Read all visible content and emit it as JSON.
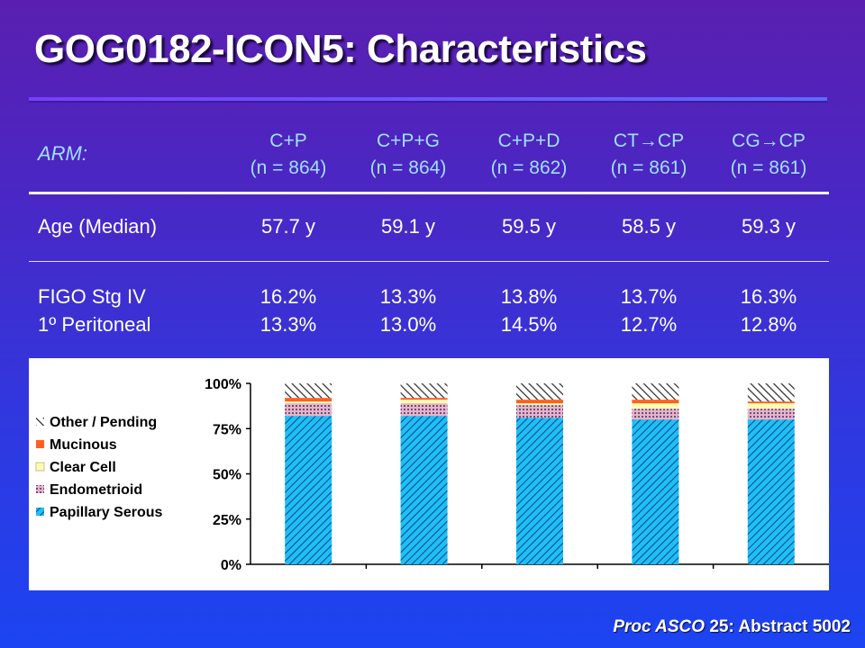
{
  "slide": {
    "title": "GOG0182-ICON5:  Characteristics",
    "footer_journal": "Proc ASCO",
    "footer_rest": " 25: Abstract 5002"
  },
  "table": {
    "arm_label": "ARM:",
    "arms": [
      {
        "name": "C+P",
        "n": "(n = 864)"
      },
      {
        "name": "C+P+G",
        "n": "(n = 864)"
      },
      {
        "name": "C+P+D",
        "n": "(n = 862)"
      },
      {
        "name": "CT→CP",
        "n": "(n = 861)"
      },
      {
        "name": "CG→CP",
        "n": "(n = 861)"
      }
    ],
    "rows": [
      {
        "label": "Age (Median)",
        "values": [
          "57.7 y",
          "59.1 y",
          "59.5 y",
          "58.5 y",
          "59.3 y"
        ]
      },
      {
        "label": "FIGO Stg IV",
        "values": [
          "16.2%",
          "13.3%",
          "13.8%",
          "13.7%",
          "16.3%"
        ]
      },
      {
        "label": "1º Peritoneal",
        "values": [
          "13.3%",
          "13.0%",
          "14.5%",
          "12.7%",
          "12.8%"
        ]
      }
    ]
  },
  "chart_data": {
    "type": "bar",
    "stacked": true,
    "categories": [
      "C+P",
      "C+P+G",
      "C+P+D",
      "CT→CP",
      "CG→CP"
    ],
    "y_ticks": [
      "0%",
      "25%",
      "50%",
      "75%",
      "100%"
    ],
    "ylim": [
      0,
      100
    ],
    "legend_position": "left",
    "series": [
      {
        "name": "Papillary Serous",
        "values": [
          82,
          82,
          81,
          80,
          80
        ],
        "color": "#1ec0f0",
        "pattern": "hatch-down"
      },
      {
        "name": "Endometrioid",
        "values": [
          7,
          7,
          7,
          6,
          6
        ],
        "color": "#e6b4c4",
        "pattern": "dots"
      },
      {
        "name": "Clear Cell",
        "values": [
          1,
          2,
          1,
          3,
          3
        ],
        "color": "#fffbb0",
        "pattern": "solid"
      },
      {
        "name": "Mucinous",
        "values": [
          2,
          1,
          2,
          2,
          1
        ],
        "color": "#ff6020",
        "pattern": "solid"
      },
      {
        "name": "Other / Pending",
        "values": [
          8,
          8,
          9,
          9,
          10
        ],
        "color": "#606060",
        "pattern": "hatch-up"
      }
    ]
  }
}
